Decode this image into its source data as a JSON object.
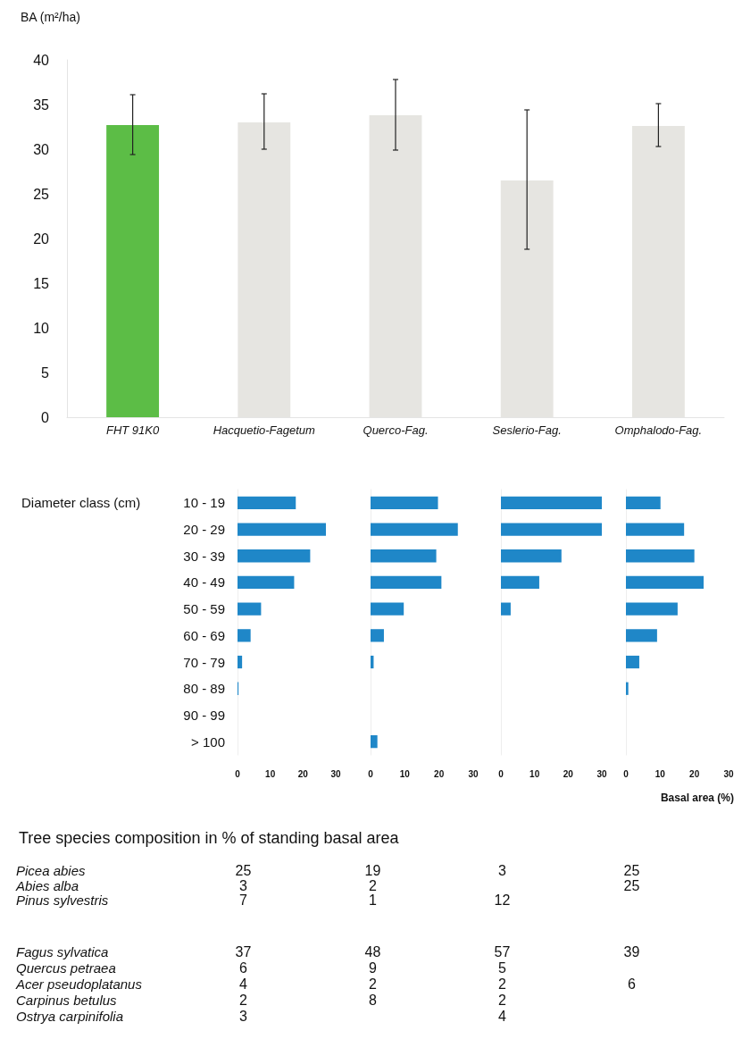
{
  "chart_data": [
    {
      "type": "bar",
      "ylabel": "BA (m²/ha)",
      "categories": [
        "FHT 91K0",
        "Hacquetio-Fagetum",
        "Querco-Fag.",
        "Seslerio-Fag.",
        "Omphalodo-Fag."
      ],
      "values": [
        32.7,
        33.0,
        33.8,
        26.5,
        32.6
      ],
      "colors": [
        "#5cbd46",
        "#e6e5e1",
        "#e6e5e1",
        "#e6e5e1",
        "#e6e5e1"
      ],
      "errors": [
        [
          29.4,
          36.1
        ],
        [
          30.0,
          36.2
        ],
        [
          29.9,
          37.8
        ],
        [
          18.8,
          34.4
        ],
        [
          30.3,
          35.1
        ]
      ],
      "ylim": [
        0,
        40
      ],
      "yticks": [
        0,
        5,
        10,
        15,
        20,
        25,
        30,
        35,
        40
      ],
      "grid": false
    },
    {
      "type": "bar",
      "orientation": "horizontal",
      "ylabel": "Diameter class (cm)",
      "categories": [
        "10 - 19",
        "20 - 29",
        "30 - 39",
        "40 - 49",
        "50 - 59",
        "60 - 69",
        "70 - 79",
        "80 - 89",
        "90 - 99",
        "> 100"
      ],
      "values": [
        17.8,
        27,
        22.2,
        17.3,
        7.2,
        4,
        1.4,
        0.3,
        0,
        0
      ],
      "color": "#1f87c8",
      "xlim": [
        0,
        30
      ],
      "xticks": [
        0,
        10,
        20,
        30
      ],
      "grid": false
    },
    {
      "type": "bar",
      "orientation": "horizontal",
      "categories": [
        null,
        null,
        null,
        null,
        null,
        null,
        null,
        null,
        null,
        null
      ],
      "values": [
        19.7,
        25.5,
        19.2,
        20.7,
        9.7,
        3.9,
        0.9,
        0,
        0,
        2
      ],
      "color": "#1f87c8",
      "xlim": [
        0,
        30
      ],
      "xticks": [
        0,
        10,
        20,
        30
      ],
      "grid": false,
      "tick_labels": "x"
    },
    {
      "type": "bar",
      "orientation": "horizontal",
      "categories": [
        null,
        null,
        null,
        null,
        null,
        null,
        null,
        null,
        null,
        null
      ],
      "values": [
        30,
        30,
        18,
        11.4,
        2.9,
        0,
        0,
        0,
        0,
        0
      ],
      "color": "#1f87c8",
      "xlim": [
        0,
        30
      ],
      "xticks": [
        0,
        10,
        20,
        30
      ],
      "grid": false,
      "tick_labels": "x"
    },
    {
      "type": "bar",
      "orientation": "horizontal",
      "xlabel": "Basal area (%)",
      "categories": [
        null,
        null,
        null,
        null,
        null,
        null,
        null,
        null,
        null,
        null
      ],
      "values": [
        10.1,
        17,
        20,
        22.7,
        15.1,
        9.1,
        3.9,
        0.7,
        0,
        0
      ],
      "color": "#1f87c8",
      "xlim": [
        0,
        30
      ],
      "xticks": [
        0,
        10,
        20,
        30
      ],
      "grid": false,
      "tick_labels": "x"
    },
    {
      "type": "heatmap",
      "title": "Tree species composition in % of standing basal area",
      "categories": [
        null,
        null,
        null,
        null
      ],
      "y_categories": [
        "Picea abies",
        "Abies alba",
        "Pinus sylvestris"
      ],
      "cells": [
        [
          25,
          19,
          3,
          25
        ],
        [
          3,
          2,
          null,
          25
        ],
        [
          7,
          1,
          12,
          null
        ]
      ],
      "data_labels": true
    },
    {
      "type": "heatmap",
      "categories": [
        null,
        null,
        null,
        null
      ],
      "y_categories": [
        "Fagus sylvatica",
        "Quercus petraea",
        "Acer pseudoplatanus",
        "Carpinus betulus",
        "Ostrya carpinifolia"
      ],
      "cells": [
        [
          37,
          48,
          57,
          39
        ],
        [
          6,
          9,
          5,
          null
        ],
        [
          4,
          2,
          2,
          6
        ],
        [
          2,
          8,
          2,
          null
        ],
        [
          3,
          null,
          4,
          null
        ]
      ],
      "data_labels": true
    }
  ]
}
